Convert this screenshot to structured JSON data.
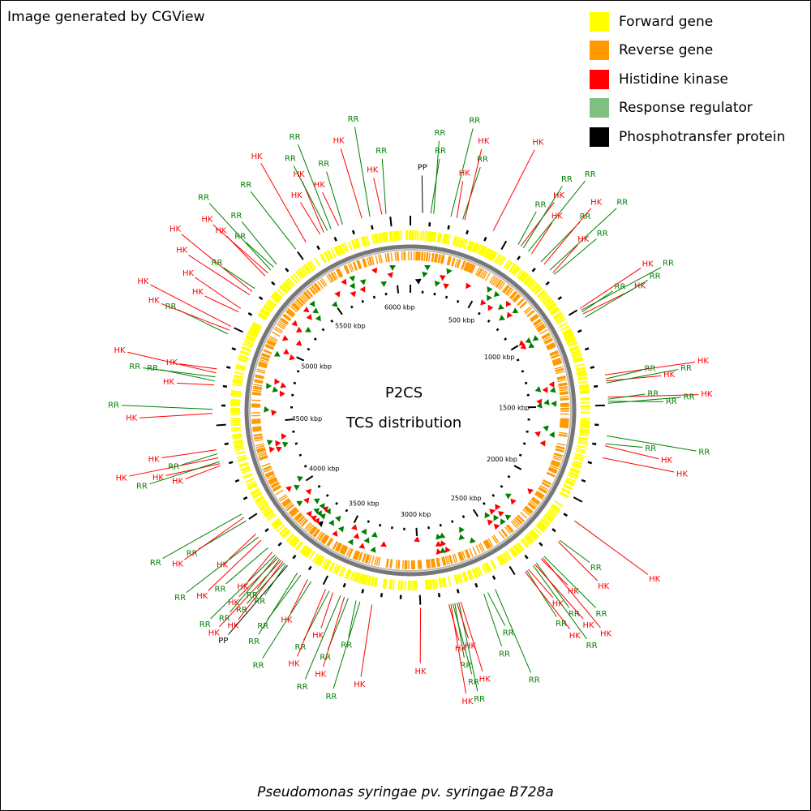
{
  "credit": "Image generated by CGView",
  "title_line1": "P2CS",
  "title_line2": "TCS distribution",
  "organism": "Pseudomonas syringae pv. syringae B728a",
  "legend": [
    {
      "label": "Forward gene",
      "color": "#ffff00"
    },
    {
      "label": "Reverse gene",
      "color": "#ff9900"
    },
    {
      "label": "Histidine kinase",
      "color": "#ff0000"
    },
    {
      "label": "Response regulator",
      "color": "#7fbf7f"
    },
    {
      "label": "Phosphotransfer protein",
      "color": "#000000"
    }
  ],
  "genome_kbp": 6100,
  "tick_labels": [
    "500 kbp",
    "1000 kbp",
    "1500 kbp",
    "2000 kbp",
    "2500 kbp",
    "3000 kbp",
    "3500 kbp",
    "4000 kbp",
    "4500 kbp",
    "5000 kbp",
    "5500 kbp",
    "6000 kbp"
  ],
  "tcs_genes": [
    {
      "kbp": 60,
      "type": "PP"
    },
    {
      "kbp": 100,
      "type": "RR"
    },
    {
      "kbp": 115,
      "type": "RR"
    },
    {
      "kbp": 200,
      "type": "RR"
    },
    {
      "kbp": 230,
      "type": "HK"
    },
    {
      "kbp": 260,
      "type": "RR"
    },
    {
      "kbp": 270,
      "type": "HK"
    },
    {
      "kbp": 420,
      "type": "HK"
    },
    {
      "kbp": 560,
      "type": "RR"
    },
    {
      "kbp": 575,
      "type": "HK"
    },
    {
      "kbp": 590,
      "type": "RR"
    },
    {
      "kbp": 620,
      "type": "RR"
    },
    {
      "kbp": 640,
      "type": "HK"
    },
    {
      "kbp": 700,
      "type": "RR"
    },
    {
      "kbp": 720,
      "type": "HK"
    },
    {
      "kbp": 760,
      "type": "RR"
    },
    {
      "kbp": 780,
      "type": "HK"
    },
    {
      "kbp": 790,
      "type": "RR"
    },
    {
      "kbp": 1000,
      "type": "HK"
    },
    {
      "kbp": 1010,
      "type": "RR"
    },
    {
      "kbp": 1020,
      "type": "RR"
    },
    {
      "kbp": 1030,
      "type": "HK"
    },
    {
      "kbp": 1050,
      "type": "RR"
    },
    {
      "kbp": 1350,
      "type": "HK"
    },
    {
      "kbp": 1370,
      "type": "RR"
    },
    {
      "kbp": 1380,
      "type": "HK"
    },
    {
      "kbp": 1390,
      "type": "RR"
    },
    {
      "kbp": 1460,
      "type": "HK"
    },
    {
      "kbp": 1470,
      "type": "RR"
    },
    {
      "kbp": 1480,
      "type": "RR"
    },
    {
      "kbp": 1490,
      "type": "RR"
    },
    {
      "kbp": 1650,
      "type": "RR"
    },
    {
      "kbp": 1690,
      "type": "RR"
    },
    {
      "kbp": 1700,
      "type": "HK"
    },
    {
      "kbp": 1760,
      "type": "HK"
    },
    {
      "kbp": 2100,
      "type": "HK"
    },
    {
      "kbp": 2220,
      "type": "RR"
    },
    {
      "kbp": 2230,
      "type": "HK"
    },
    {
      "kbp": 2330,
      "type": "RR"
    },
    {
      "kbp": 2340,
      "type": "HK"
    },
    {
      "kbp": 2350,
      "type": "HK"
    },
    {
      "kbp": 2380,
      "type": "RR"
    },
    {
      "kbp": 2390,
      "type": "HK"
    },
    {
      "kbp": 2400,
      "type": "RR"
    },
    {
      "kbp": 2430,
      "type": "HK"
    },
    {
      "kbp": 2440,
      "type": "RR"
    },
    {
      "kbp": 2450,
      "type": "HK"
    },
    {
      "kbp": 2620,
      "type": "RR"
    },
    {
      "kbp": 2660,
      "type": "RR"
    },
    {
      "kbp": 2680,
      "type": "RR"
    },
    {
      "kbp": 2800,
      "type": "HK"
    },
    {
      "kbp": 2810,
      "type": "RR"
    },
    {
      "kbp": 2820,
      "type": "HK"
    },
    {
      "kbp": 2830,
      "type": "RR"
    },
    {
      "kbp": 2840,
      "type": "RR"
    },
    {
      "kbp": 2850,
      "type": "HK"
    },
    {
      "kbp": 2860,
      "type": "HK"
    },
    {
      "kbp": 3000,
      "type": "HK"
    },
    {
      "kbp": 3240,
      "type": "HK"
    },
    {
      "kbp": 3300,
      "type": "RR"
    },
    {
      "kbp": 3320,
      "type": "RR"
    },
    {
      "kbp": 3360,
      "type": "RR"
    },
    {
      "kbp": 3380,
      "type": "HK"
    },
    {
      "kbp": 3400,
      "type": "RR"
    },
    {
      "kbp": 3440,
      "type": "HK"
    },
    {
      "kbp": 3460,
      "type": "RR"
    },
    {
      "kbp": 3480,
      "type": "HK"
    },
    {
      "kbp": 3560,
      "type": "RR"
    },
    {
      "kbp": 3580,
      "type": "HK"
    },
    {
      "kbp": 3620,
      "type": "RR"
    },
    {
      "kbp": 3640,
      "type": "RR"
    },
    {
      "kbp": 3700,
      "type": "PP"
    },
    {
      "kbp": 3710,
      "type": "RR"
    },
    {
      "kbp": 3720,
      "type": "RR"
    },
    {
      "kbp": 3730,
      "type": "HK"
    },
    {
      "kbp": 3740,
      "type": "HK"
    },
    {
      "kbp": 3750,
      "type": "RR"
    },
    {
      "kbp": 3760,
      "type": "HK"
    },
    {
      "kbp": 3770,
      "type": "RR"
    },
    {
      "kbp": 3780,
      "type": "RR"
    },
    {
      "kbp": 3800,
      "type": "HK"
    },
    {
      "kbp": 3830,
      "type": "RR"
    },
    {
      "kbp": 3880,
      "type": "HK"
    },
    {
      "kbp": 3900,
      "type": "RR"
    },
    {
      "kbp": 3920,
      "type": "HK"
    },
    {
      "kbp": 4000,
      "type": "RR"
    },
    {
      "kbp": 4020,
      "type": "HK"
    },
    {
      "kbp": 4040,
      "type": "RR"
    },
    {
      "kbp": 4300,
      "type": "HK"
    },
    {
      "kbp": 4310,
      "type": "HK"
    },
    {
      "kbp": 4320,
      "type": "RR"
    },
    {
      "kbp": 4340,
      "type": "HK"
    },
    {
      "kbp": 4360,
      "type": "RR"
    },
    {
      "kbp": 4380,
      "type": "HK"
    },
    {
      "kbp": 4560,
      "type": "HK"
    },
    {
      "kbp": 4580,
      "type": "RR"
    },
    {
      "kbp": 4700,
      "type": "HK"
    },
    {
      "kbp": 4720,
      "type": "RR"
    },
    {
      "kbp": 4740,
      "type": "RR"
    },
    {
      "kbp": 4760,
      "type": "HK"
    },
    {
      "kbp": 4780,
      "type": "HK"
    },
    {
      "kbp": 4960,
      "type": "RR"
    },
    {
      "kbp": 4980,
      "type": "HK"
    },
    {
      "kbp": 5000,
      "type": "HK"
    },
    {
      "kbp": 5080,
      "type": "HK"
    },
    {
      "kbp": 5100,
      "type": "HK"
    },
    {
      "kbp": 5180,
      "type": "HK"
    },
    {
      "kbp": 5200,
      "type": "HK"
    },
    {
      "kbp": 5220,
      "type": "RR"
    },
    {
      "kbp": 5300,
      "type": "HK"
    },
    {
      "kbp": 5320,
      "type": "HK"
    },
    {
      "kbp": 5340,
      "type": "RR"
    },
    {
      "kbp": 5360,
      "type": "RR"
    },
    {
      "kbp": 5380,
      "type": "RR"
    },
    {
      "kbp": 5500,
      "type": "RR"
    },
    {
      "kbp": 5560,
      "type": "HK"
    },
    {
      "kbp": 5640,
      "type": "HK"
    },
    {
      "kbp": 5660,
      "type": "HK"
    },
    {
      "kbp": 5680,
      "type": "RR"
    },
    {
      "kbp": 5700,
      "type": "RR"
    },
    {
      "kbp": 5740,
      "type": "HK"
    },
    {
      "kbp": 5760,
      "type": "RR"
    },
    {
      "kbp": 5860,
      "type": "HK"
    },
    {
      "kbp": 5900,
      "type": "RR"
    },
    {
      "kbp": 5960,
      "type": "HK"
    },
    {
      "kbp": 5980,
      "type": "RR"
    }
  ]
}
